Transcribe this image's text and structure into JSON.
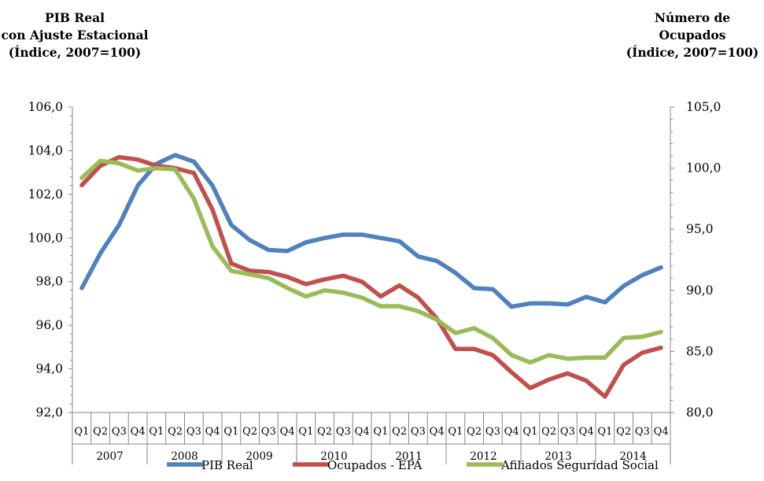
{
  "left_axis_title": [
    "PIB Real",
    "con Ajuste Estacional",
    "(Índice, 2007=100)"
  ],
  "right_axis_title": [
    "Número de",
    "Ocupados",
    "(Índice, 2007=100)"
  ],
  "chart_data": {
    "type": "line",
    "title": "",
    "quarters": [
      "Q1",
      "Q2",
      "Q3",
      "Q4"
    ],
    "years": [
      "2007",
      "2008",
      "2009",
      "2010",
      "2011",
      "2012",
      "2013",
      "2014"
    ],
    "categories": [
      "2007 Q1",
      "2007 Q2",
      "2007 Q3",
      "2007 Q4",
      "2008 Q1",
      "2008 Q2",
      "2008 Q3",
      "2008 Q4",
      "2009 Q1",
      "2009 Q2",
      "2009 Q3",
      "2009 Q4",
      "2010 Q1",
      "2010 Q2",
      "2010 Q3",
      "2010 Q4",
      "2011 Q1",
      "2011 Q2",
      "2011 Q3",
      "2011 Q4",
      "2012 Q1",
      "2012 Q2",
      "2012 Q3",
      "2012 Q4",
      "2013 Q1",
      "2013 Q2",
      "2013 Q3",
      "2013 Q4",
      "2014 Q1",
      "2014 Q2",
      "2014 Q3",
      "2014 Q4"
    ],
    "left_axis": {
      "min": 92,
      "max": 106,
      "step": 2,
      "ticks": [
        "92,0",
        "94,0",
        "96,0",
        "98,0",
        "100,0",
        "102,0",
        "104,0",
        "106,0"
      ]
    },
    "right_axis": {
      "min": 80,
      "max": 105,
      "step": 5,
      "ticks": [
        "80,0",
        "85,0",
        "90,0",
        "95,0",
        "100,0",
        "105,0"
      ]
    },
    "series": [
      {
        "name": "PIB Real",
        "axis": "left",
        "color": "#4f81bd",
        "values": [
          97.7,
          99.3,
          100.6,
          102.4,
          103.4,
          103.8,
          103.5,
          102.4,
          100.6,
          99.9,
          99.45,
          99.4,
          99.8,
          100.0,
          100.15,
          100.15,
          100.0,
          99.85,
          99.15,
          98.95,
          98.4,
          97.7,
          97.65,
          96.85,
          97.0,
          97.0,
          96.95,
          97.3,
          97.05,
          97.8,
          98.3,
          98.65
        ]
      },
      {
        "name": "Ocupados - EPA",
        "axis": "right",
        "color": "#c0504d",
        "values": [
          98.6,
          100.2,
          100.9,
          100.7,
          100.2,
          100.0,
          99.6,
          96.6,
          92.2,
          91.6,
          91.5,
          91.1,
          90.5,
          90.9,
          91.2,
          90.7,
          89.5,
          90.4,
          89.4,
          87.7,
          85.2,
          85.2,
          84.7,
          83.3,
          82.0,
          82.7,
          83.2,
          82.6,
          81.3,
          83.9,
          84.9,
          85.3
        ]
      },
      {
        "name": "Afiliados Seguridad Social",
        "axis": "right",
        "color": "#9bbb59",
        "values": [
          99.2,
          100.6,
          100.4,
          99.8,
          100.0,
          99.9,
          97.5,
          93.6,
          91.6,
          91.3,
          91.0,
          90.2,
          89.5,
          90.0,
          89.8,
          89.4,
          88.7,
          88.7,
          88.3,
          87.6,
          86.5,
          86.9,
          86.1,
          84.7,
          84.1,
          84.7,
          84.4,
          84.5,
          84.5,
          86.1,
          86.2,
          86.6
        ]
      }
    ],
    "legend": [
      "PIB Real",
      "Ocupados - EPA",
      "Afiliados Seguridad Social"
    ],
    "legend_position": "bottom",
    "grid": false
  }
}
